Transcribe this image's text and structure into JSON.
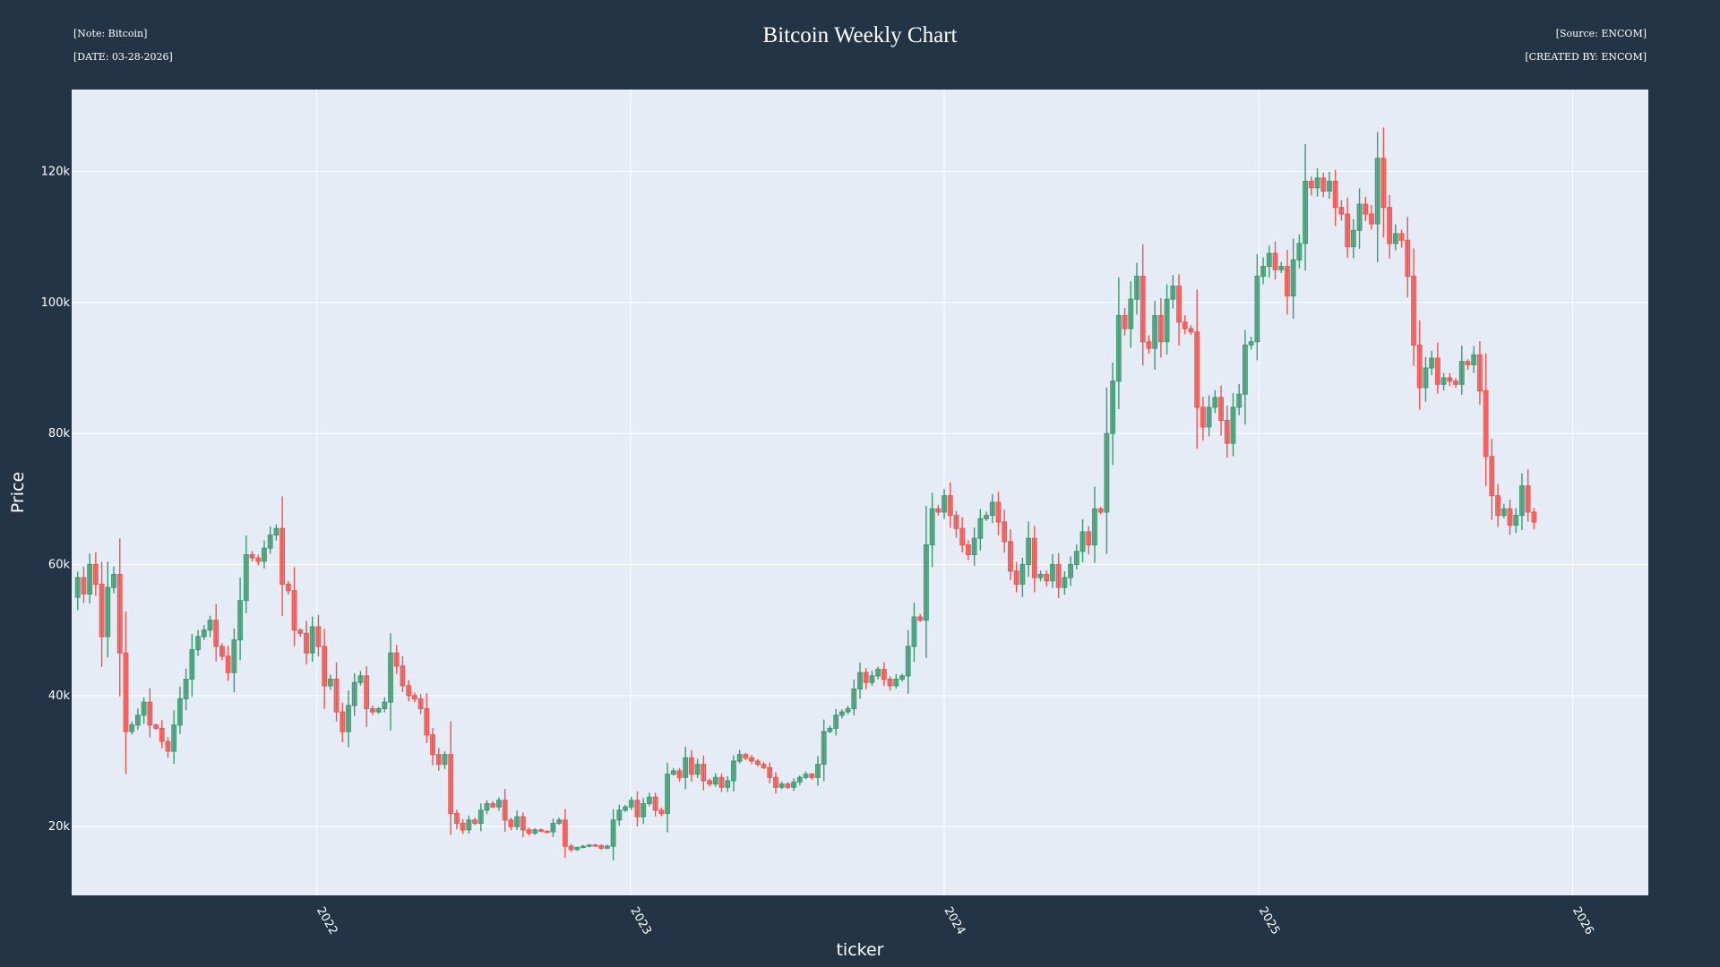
{
  "header": {
    "note": "[Note: Bitcoin]",
    "date": "[DATE: 03-28-2026]",
    "source": "[Source: ENCOM]",
    "created_by": "[CREATED BY: ENCOM]"
  },
  "colors": {
    "background": "#243447",
    "plot_bg": "#e5ecf6",
    "up": "#3d9970",
    "down": "#ef5350"
  },
  "chart_data": {
    "type": "candlestick",
    "title": "Bitcoin Weekly Chart",
    "xlabel": "ticker",
    "ylabel": "Price",
    "xlim": [
      "2021-03-22",
      "2026-03-30"
    ],
    "ylim": [
      9500,
      132500
    ],
    "yticks": [
      {
        "v": 20000,
        "label": "20k"
      },
      {
        "v": 40000,
        "label": "40k"
      },
      {
        "v": 60000,
        "label": "60k"
      },
      {
        "v": 80000,
        "label": "80k"
      },
      {
        "v": 100000,
        "label": "100k"
      },
      {
        "v": 120000,
        "label": "120k"
      }
    ],
    "xticks": [
      {
        "date": "2022-01-01",
        "label": "2022"
      },
      {
        "date": "2023-01-01",
        "label": "2023"
      },
      {
        "date": "2024-01-01",
        "label": "2024"
      },
      {
        "date": "2025-01-01",
        "label": "2025"
      },
      {
        "date": "2026-01-01",
        "label": "2026"
      }
    ],
    "grid": true,
    "start_date": "2021-03-29",
    "interval_days": 7,
    "close_start": 55000,
    "closes": [
      58000,
      55500,
      60000,
      57000,
      49000,
      56500,
      58500,
      46500,
      34500,
      35500,
      37000,
      39000,
      35500,
      35000,
      33000,
      31500,
      35500,
      39500,
      42500,
      47000,
      49000,
      50000,
      51500,
      47500,
      46000,
      43500,
      48500,
      54500,
      61500,
      61000,
      60500,
      62500,
      64500,
      65500,
      57000,
      56000,
      50000,
      49500,
      46500,
      50500,
      47500,
      41500,
      42500,
      37500,
      34500,
      38500,
      42000,
      43000,
      38000,
      37500,
      38000,
      39000,
      46500,
      44500,
      41500,
      40000,
      39500,
      38000,
      34000,
      31000,
      29500,
      31000,
      22000,
      20500,
      19500,
      21000,
      20500,
      22500,
      23500,
      23000,
      24000,
      21000,
      20000,
      21500,
      19500,
      19000,
      19500,
      19300,
      19200,
      20500,
      21000,
      17000,
      16500,
      16800,
      17000,
      17200,
      17100,
      16700,
      17000,
      21000,
      22500,
      23000,
      24000,
      21500,
      23500,
      24500,
      22500,
      22000,
      28000,
      28500,
      27500,
      30500,
      28000,
      29500,
      27000,
      26500,
      27500,
      26000,
      27000,
      30000,
      31000,
      30500,
      30000,
      29500,
      29000,
      27500,
      26000,
      26500,
      26000,
      26800,
      27500,
      28000,
      27500,
      29500,
      34500,
      35000,
      37000,
      37500,
      38000,
      41000,
      43500,
      42000,
      43000,
      44000,
      42500,
      41500,
      42500,
      43000,
      47500,
      52000,
      51500,
      63000,
      68500,
      68000,
      70500,
      67500,
      65500,
      63000,
      61500,
      64000,
      67000,
      67500,
      69500,
      66500,
      63500,
      59000,
      57000,
      60000,
      64000,
      58000,
      58500,
      57500,
      60000,
      56500,
      58000,
      60000,
      62000,
      65000,
      63000,
      68500,
      68000,
      80000,
      88000,
      98000,
      96000,
      100500,
      104000,
      94000,
      93000,
      98000,
      94000,
      100500,
      102500,
      97000,
      96000,
      95500,
      84000,
      81000,
      84000,
      85500,
      82000,
      78500,
      84000,
      86000,
      93500,
      94000,
      104000,
      105500,
      107500,
      105000,
      105500,
      101000,
      106500,
      109000,
      118500,
      117500,
      119000,
      117000,
      118500,
      114500,
      113500,
      108500,
      111000,
      115000,
      113500,
      112000,
      122000,
      114500,
      109000,
      110500,
      109500,
      104000,
      93500,
      87000,
      90000,
      91500,
      87500,
      88500,
      88000,
      87500,
      91000,
      90500,
      92000,
      86500,
      76500,
      70500,
      67500,
      68500,
      66000,
      67500,
      72000,
      68000,
      66500
    ]
  }
}
